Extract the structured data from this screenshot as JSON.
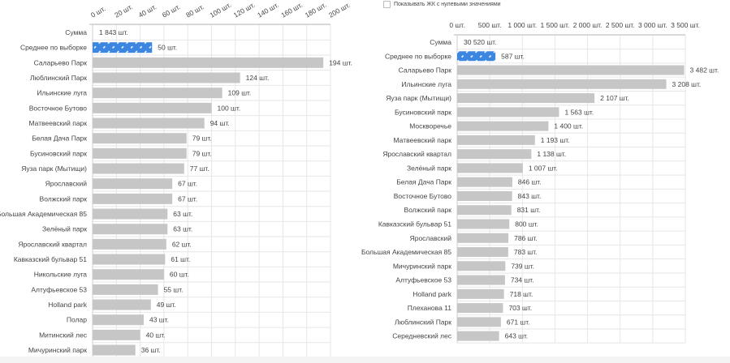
{
  "toggle": {
    "label": "Показывать ЖК с нулевыми значениями",
    "checked": false
  },
  "colors": {
    "bar": "#c6c6c6",
    "average": "#3a86e0",
    "grid": "#e6e6e6",
    "axis": "#cfcfcf"
  },
  "chart_data": [
    {
      "type": "bar",
      "orientation": "horizontal",
      "unit": "шт.",
      "xlim": [
        0,
        200
      ],
      "ticks": [
        0,
        20,
        40,
        60,
        80,
        100,
        120,
        140,
        160,
        180,
        200
      ],
      "tick_labels": [
        "0 шт.",
        "20 шт.",
        "40 шт.",
        "60 шт.",
        "80 шт.",
        "100 шт.",
        "120 шт.",
        "140 шт.",
        "160 шт.",
        "180 шт.",
        "200 шт."
      ],
      "sum": {
        "label": "Сумма",
        "value_label": "1 843 шт.",
        "value": 1843
      },
      "average": {
        "label": "Среднее по выборке",
        "value": 50,
        "value_label": "50 шт."
      },
      "categories": [
        "Саларьево Парк",
        "Люблинский Парк",
        "Ильинские луга",
        "Восточное Бутово",
        "Матвеевский парк",
        "Белая Дача Парк",
        "Бусиновский парк",
        "Яуза парк (Мытищи)",
        "Ярославский",
        "Волжский парк",
        "Большая Академическая 85",
        "Зелёный парк",
        "Ярославский квартал",
        "Кавказский бульвар 51",
        "Никольские луга",
        "Алтуфьевское 53",
        "Holland park",
        "Полар",
        "Митинский лес",
        "Мичуринский парк"
      ],
      "values": [
        194,
        124,
        109,
        100,
        94,
        79,
        79,
        77,
        67,
        67,
        63,
        63,
        62,
        61,
        60,
        55,
        49,
        43,
        40,
        36
      ],
      "value_labels": [
        "194 шт.",
        "124 шт.",
        "109 шт.",
        "100 шт.",
        "94 шт.",
        "79 шт.",
        "79 шт.",
        "77 шт.",
        "67 шт.",
        "67 шт.",
        "63 шт.",
        "63 шт.",
        "62 шт.",
        "61 шт.",
        "60 шт.",
        "55 шт.",
        "49 шт.",
        "43 шт.",
        "40 шт.",
        "36 шт."
      ]
    },
    {
      "type": "bar",
      "orientation": "horizontal",
      "unit": "шт.",
      "xlim": [
        0,
        3500
      ],
      "ticks": [
        0,
        500,
        1000,
        1500,
        2000,
        2500,
        3000,
        3500
      ],
      "tick_labels": [
        "0 шт.",
        "500 шт.",
        "1 000 шт.",
        "1 500 шт.",
        "2 000 шт.",
        "2 500 шт.",
        "3 000 шт.",
        "3 500 шт."
      ],
      "sum": {
        "label": "Сумма",
        "value_label": "30 520 шт.",
        "value": 30520
      },
      "average": {
        "label": "Среднее по выборке",
        "value": 587,
        "value_label": "587 шт."
      },
      "categories": [
        "Саларьево Парк",
        "Ильинские луга",
        "Яуза парк (Мытищи)",
        "Бусиновский парк",
        "Москворечье",
        "Матвеевский парк",
        "Ярославский квартал",
        "Зелёный парк",
        "Белая Дача Парк",
        "Восточное Бутово",
        "Волжский парк",
        "Кавказский бульвар 51",
        "Ярославский",
        "Большая Академическая 85",
        "Мичуринский парк",
        "Алтуфьевское 53",
        "Holland park",
        "Плеханова 11",
        "Люблинский Парк",
        "Середневский лес"
      ],
      "values": [
        3482,
        3208,
        2107,
        1563,
        1400,
        1193,
        1138,
        1007,
        846,
        843,
        831,
        800,
        786,
        783,
        739,
        734,
        718,
        703,
        671,
        643
      ],
      "value_labels": [
        "3 482 шт.",
        "3 208 шт.",
        "2 107 шт.",
        "1 563 шт.",
        "1 400 шт.",
        "1 193 шт.",
        "1 138 шт.",
        "1 007 шт.",
        "846 шт.",
        "843 шт.",
        "831 шт.",
        "800 шт.",
        "786 шт.",
        "783 шт.",
        "739 шт.",
        "734 шт.",
        "718 шт.",
        "703 шт.",
        "671 шт.",
        "643 шт."
      ]
    }
  ]
}
